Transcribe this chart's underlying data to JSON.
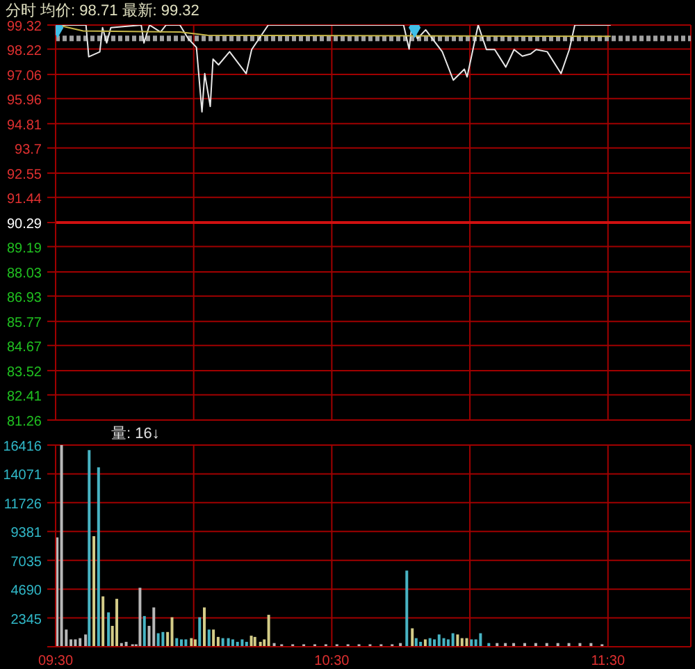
{
  "chart_data": [
    {
      "type": "line",
      "title": "分时 均价: 98.71 最新: 99.32",
      "xlim": [
        9.5,
        11.8
      ],
      "xticks": [
        {
          "value": 9.5,
          "label": null
        },
        {
          "value": 10,
          "label": null
        },
        {
          "value": 10.5,
          "label": null
        },
        {
          "value": 11,
          "label": null
        },
        {
          "value": 11.5,
          "label": null
        }
      ],
      "ylim": [
        81.26,
        99.32
      ],
      "yticks": [
        81.26,
        82.41,
        83.52,
        84.67,
        85.77,
        86.93,
        88.03,
        89.19,
        90.29,
        91.44,
        92.55,
        93.7,
        94.81,
        95.96,
        97.06,
        98.22,
        99.32
      ],
      "tick_labels": "y",
      "grid": true,
      "ref_lines": [
        {
          "axis": "y",
          "value": 90.29,
          "color": "#d01010"
        },
        {
          "axis": "y",
          "value": 98.71,
          "color": "#a0a0a0",
          "line_style": "dotted"
        }
      ],
      "series": [
        {
          "color": "#e8e8e8",
          "x": [
            9.507,
            9.61,
            9.62,
            9.66,
            9.67,
            9.685,
            9.7,
            9.81,
            9.82,
            9.84,
            9.88,
            9.9,
            9.95,
            9.98,
            10.01,
            10.03,
            10.04,
            10.06,
            10.07,
            10.09,
            10.13,
            10.19,
            10.21,
            10.27,
            10.76,
            10.78,
            10.79,
            10.81,
            10.84,
            10.87,
            10.9,
            10.94,
            10.98,
            10.99,
            11.03,
            11.06,
            11.09,
            11.13,
            11.16,
            11.19,
            11.22,
            11.24,
            11.28,
            11.33,
            11.36,
            11.38,
            11.51
          ],
          "values": [
            99.32,
            99.32,
            97.87,
            98.09,
            99.2,
            98.5,
            99.2,
            99.32,
            98.5,
            99.32,
            99.0,
            99.32,
            99.32,
            98.7,
            98.3,
            95.35,
            97.1,
            95.6,
            97.76,
            97.5,
            98.1,
            97.1,
            98.2,
            99.32,
            99.32,
            98.22,
            99.32,
            98.7,
            99.1,
            98.6,
            98.1,
            96.8,
            97.3,
            96.95,
            99.32,
            98.2,
            98.2,
            97.4,
            98.2,
            97.9,
            98.0,
            98.2,
            98.1,
            97.1,
            98.2,
            99.32,
            99.32
          ]
        },
        {
          "color": "#c8b848",
          "x": [
            9.507,
            9.6,
            9.95,
            10.05,
            11.51
          ],
          "values": [
            99.32,
            99.05,
            99.0,
            98.85,
            98.8
          ]
        },
        {
          "type": "scatter",
          "marker": "diamond",
          "color": "#40c0e8",
          "x": [
            9.507,
            10.8
          ],
          "values": [
            99.2,
            99.2
          ]
        }
      ]
    },
    {
      "type": "bar",
      "title": "量: 16↓",
      "xlim": [
        9.5,
        11.8
      ],
      "xticks": [
        {
          "value": 9.5,
          "label": "09:30"
        },
        {
          "value": 10,
          "label": null
        },
        {
          "value": 10.5,
          "label": "10:30"
        },
        {
          "value": 11,
          "label": null
        },
        {
          "value": 11.5,
          "label": "11:30"
        }
      ],
      "ylim": [
        0,
        16416
      ],
      "yticks": [
        {
          "value": 0,
          "label": null
        },
        2345,
        4690,
        7035,
        9381,
        11726,
        14071,
        16416
      ],
      "grid": true,
      "series": [
        {
          "x": [
            9.507,
            9.523,
            9.54,
            9.557,
            9.573,
            9.59,
            9.61,
            9.623,
            9.64,
            9.657,
            9.673,
            9.693,
            9.707,
            9.723,
            9.74,
            9.757,
            9.78,
            9.793,
            9.807,
            9.823,
            9.84,
            9.857,
            9.873,
            9.89,
            9.907,
            9.923,
            9.94,
            9.957,
            9.973,
            9.993,
            10.007,
            10.023,
            10.04,
            10.057,
            10.073,
            10.09,
            10.107,
            10.127,
            10.143,
            10.16,
            10.177,
            10.193,
            10.21,
            10.223,
            10.243,
            10.257,
            10.273,
            10.293,
            10.32,
            10.36,
            10.4,
            10.44,
            10.48,
            10.52,
            10.56,
            10.6,
            10.64,
            10.68,
            10.72,
            10.75,
            10.773,
            10.793,
            10.807,
            10.823,
            10.84,
            10.857,
            10.873,
            10.89,
            10.907,
            10.923,
            10.94,
            10.957,
            10.973,
            10.99,
            11.007,
            11.023,
            11.04,
            11.07,
            11.1,
            11.13,
            11.16,
            11.2,
            11.24,
            11.28,
            11.32,
            11.36,
            11.4,
            11.44,
            11.48
          ],
          "values": [
            8900,
            16416,
            1400,
            600,
            600,
            700,
            1000,
            16000,
            9000,
            14600,
            4100,
            2800,
            1700,
            3900,
            300,
            400,
            200,
            200,
            4800,
            2500,
            1700,
            3200,
            1100,
            1200,
            1200,
            2400,
            700,
            600,
            600,
            700,
            600,
            2400,
            3200,
            1400,
            1400,
            800,
            700,
            700,
            600,
            400,
            600,
            400,
            900,
            800,
            400,
            600,
            2600,
            300,
            200,
            200,
            200,
            200,
            200,
            200,
            200,
            200,
            200,
            200,
            200,
            300,
            6200,
            1500,
            700,
            400,
            600,
            700,
            600,
            1000,
            700,
            600,
            1100,
            1000,
            700,
            700,
            600,
            600,
            1100,
            300,
            300,
            300,
            300,
            300,
            300,
            300,
            300,
            300,
            300,
            300,
            200
          ],
          "colors": [
            "#b8b8b8",
            "#b8b8b8",
            "#b8b8b8",
            "#b8b8b8",
            "#b8b8b8",
            "#b8b8b8",
            "#b8b8b8",
            "#48b4c4",
            "#d4cc88",
            "#48b4c4",
            "#d4cc88",
            "#48b4c4",
            "#d4cc88",
            "#d4cc88",
            "#b8b8b8",
            "#b8b8b8",
            "#b8b8b8",
            "#b8b8b8",
            "#b8b8b8",
            "#48b4c4",
            "#b8b8b8",
            "#b8b8b8",
            "#48b4c4",
            "#48b4c4",
            "#d4cc88",
            "#d4cc88",
            "#48b4c4",
            "#48b4c4",
            "#48b4c4",
            "#d4cc88",
            "#d4cc88",
            "#48b4c4",
            "#d4cc88",
            "#48b4c4",
            "#d4cc88",
            "#d4cc88",
            "#48b4c4",
            "#48b4c4",
            "#48b4c4",
            "#48b4c4",
            "#48b4c4",
            "#48b4c4",
            "#d4cc88",
            "#d4cc88",
            "#d4cc88",
            "#d4cc88",
            "#d4cc88",
            "#b8b8b8",
            "#b8b8b8",
            "#b8b8b8",
            "#b8b8b8",
            "#b8b8b8",
            "#b8b8b8",
            "#b8b8b8",
            "#b8b8b8",
            "#b8b8b8",
            "#b8b8b8",
            "#b8b8b8",
            "#b8b8b8",
            "#b8b8b8",
            "#48b4c4",
            "#d4cc88",
            "#48b4c4",
            "#48b4c4",
            "#d4cc88",
            "#48b4c4",
            "#48b4c4",
            "#48b4c4",
            "#48b4c4",
            "#48b4c4",
            "#48b4c4",
            "#d4cc88",
            "#d4cc88",
            "#d4cc88",
            "#48b4c4",
            "#48b4c4",
            "#48b4c4",
            "#48b4c4",
            "#b8b8b8",
            "#b8b8b8",
            "#b8b8b8",
            "#b8b8b8",
            "#b8b8b8",
            "#b8b8b8",
            "#b8b8b8",
            "#b8b8b8",
            "#b8b8b8",
            "#b8b8b8",
            "#b8b8b8"
          ]
        }
      ]
    }
  ]
}
